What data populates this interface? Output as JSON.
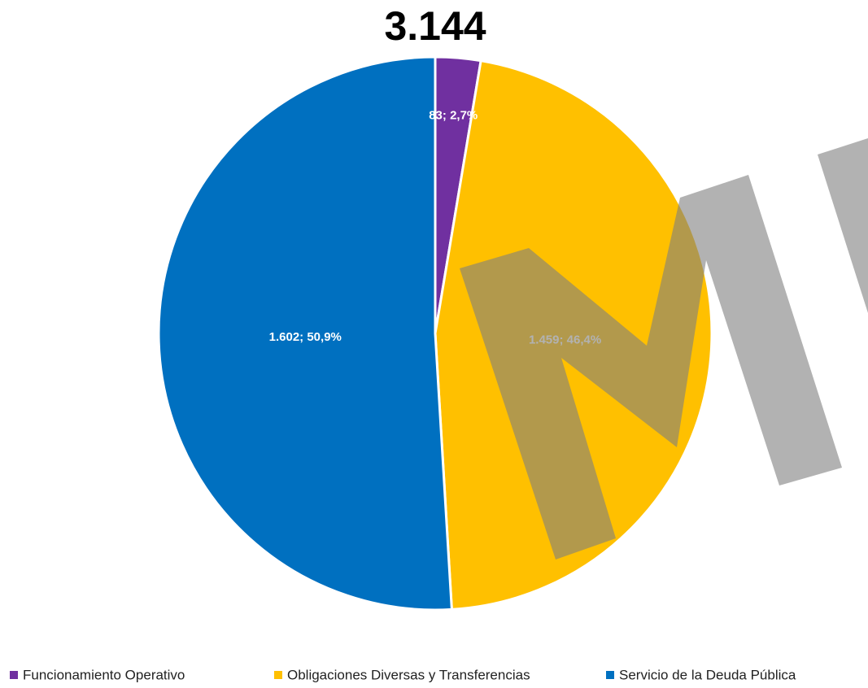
{
  "chart_data": {
    "type": "pie",
    "title": "3.144",
    "categories": [
      "Funcionamiento Operativo",
      "Obligaciones Diversas y Transferencias",
      "Servicio de la Deuda Pública"
    ],
    "values": [
      83,
      1459,
      1602
    ],
    "value_labels": [
      "83; 2,7%",
      "1.459; 46,4%",
      "1.602; 50,9%"
    ],
    "colors": [
      "#7030a0",
      "#ffc000",
      "#0070c0"
    ],
    "legend": "bottom"
  }
}
